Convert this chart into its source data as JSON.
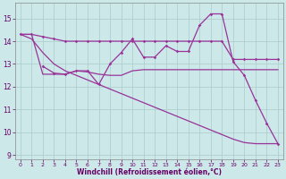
{
  "background_color": "#cce8e8",
  "grid_color": "#aacccc",
  "line_color": "#993399",
  "xlabel": "Windchill (Refroidissement éolien,°C)",
  "xlim": [
    -0.5,
    23.5
  ],
  "ylim": [
    8.8,
    15.7
  ],
  "yticks": [
    9,
    10,
    11,
    12,
    13,
    14,
    15
  ],
  "xticks": [
    0,
    1,
    2,
    3,
    4,
    5,
    6,
    7,
    8,
    9,
    10,
    11,
    12,
    13,
    14,
    15,
    16,
    17,
    18,
    19,
    20,
    21,
    22,
    23
  ],
  "s1_x": [
    0,
    1,
    2,
    3,
    4,
    5,
    6,
    7,
    8,
    9,
    10,
    11,
    12,
    13,
    14,
    15,
    16,
    17,
    18,
    19,
    20,
    21,
    22,
    23
  ],
  "s1_y": [
    14.3,
    14.3,
    14.2,
    14.1,
    14.0,
    14.0,
    14.0,
    14.0,
    14.0,
    14.0,
    14.0,
    14.0,
    14.0,
    14.0,
    14.0,
    14.0,
    14.0,
    14.0,
    14.0,
    13.2,
    13.2,
    13.2,
    13.2,
    13.2
  ],
  "s2_x": [
    2,
    3,
    4,
    5,
    6,
    7,
    8,
    9,
    10,
    11,
    12,
    13,
    14,
    15,
    16,
    17,
    18,
    19,
    20,
    21,
    22,
    23
  ],
  "s2_y": [
    12.9,
    12.6,
    12.55,
    12.7,
    12.7,
    12.1,
    13.0,
    13.5,
    14.1,
    13.3,
    13.3,
    13.8,
    13.55,
    13.55,
    14.7,
    15.2,
    15.2,
    13.1,
    12.5,
    11.4,
    10.4,
    9.5
  ],
  "s3_x": [
    0,
    1,
    2,
    3,
    4,
    5,
    6,
    7,
    8,
    9,
    10,
    11,
    12,
    13,
    14,
    15,
    16,
    17,
    18,
    19,
    20,
    21,
    22,
    23
  ],
  "s3_y": [
    14.3,
    14.3,
    12.55,
    12.55,
    12.55,
    12.7,
    12.65,
    12.55,
    12.5,
    12.5,
    12.7,
    12.75,
    12.75,
    12.75,
    12.75,
    12.75,
    12.75,
    12.75,
    12.75,
    12.75,
    12.75,
    12.75,
    12.75,
    12.75
  ],
  "s4_x": [
    0,
    1,
    2,
    3,
    4,
    5,
    6,
    7,
    8,
    9,
    10,
    11,
    12,
    13,
    14,
    15,
    16,
    17,
    18,
    19,
    20,
    21,
    22,
    23
  ],
  "s4_y": [
    14.3,
    14.1,
    13.5,
    13.0,
    12.7,
    12.5,
    12.3,
    12.1,
    11.9,
    11.7,
    11.5,
    11.3,
    11.1,
    10.9,
    10.7,
    10.5,
    10.3,
    10.1,
    9.9,
    9.7,
    9.55,
    9.5,
    9.5,
    9.5
  ]
}
